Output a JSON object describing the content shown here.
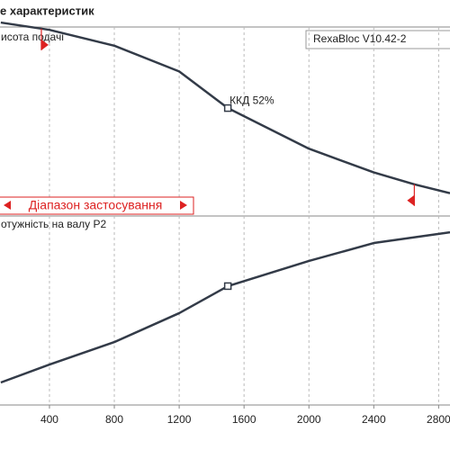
{
  "chart_data": [
    {
      "type": "line",
      "title": "е характеристик",
      "y_label": "исота подачі",
      "annotation": "ККД  52%",
      "annotation_x": 1500,
      "range_label": "Діапазон застосування",
      "range_x": [
        350,
        2650
      ],
      "x": [
        100,
        400,
        800,
        1200,
        1500,
        2000,
        2400,
        2650,
        2870
      ],
      "series": [
        {
          "name": "RexaBloc V10.42-2",
          "color": "#333b48",
          "values": [
            97.7,
            94,
            86,
            73,
            54.5,
            34,
            22,
            16,
            11.5
          ]
        }
      ],
      "xlim": [
        95,
        2870
      ],
      "ylim": [
        0,
        100
      ],
      "xticks": [
        400,
        800,
        1200,
        1600,
        2000,
        2400,
        2800
      ],
      "grid": true
    },
    {
      "type": "line",
      "y_label": "отужність на валу  P2",
      "annotation_x": 1500,
      "x": [
        100,
        400,
        800,
        1200,
        1500,
        2000,
        2400,
        2870
      ],
      "series": [
        {
          "color": "#333b48",
          "values": [
            11.9,
            21.4,
            33.3,
            48.6,
            62.9,
            76.2,
            85.7,
            91.4
          ]
        }
      ],
      "xlim": [
        95,
        2870
      ],
      "ylim": [
        0,
        100
      ],
      "xticks": [
        400,
        800,
        1200,
        1600,
        2000,
        2400,
        2800
      ],
      "grid": true
    }
  ]
}
